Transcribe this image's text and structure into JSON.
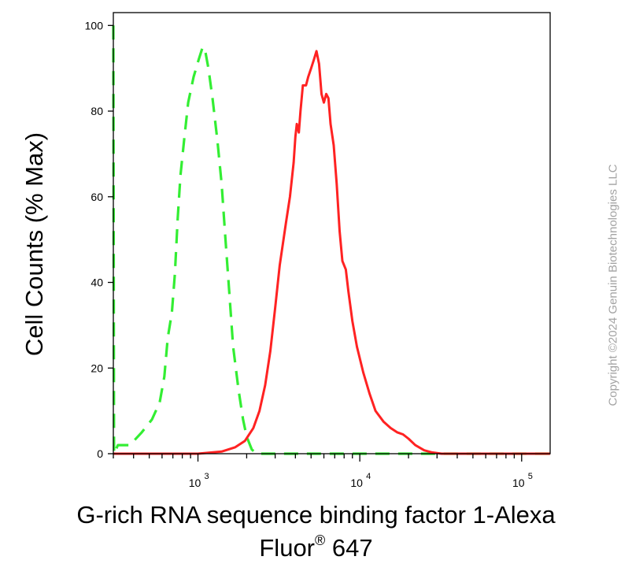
{
  "chart_data": {
    "type": "histogram-overlay",
    "x_scale": "log",
    "xlim": [
      300,
      150000
    ],
    "ylim": [
      0,
      103
    ],
    "ylabel": "Cell Counts (% Max)",
    "xlabel_line1": "G-rich RNA sequence binding factor 1-Alexa",
    "xlabel_line2_prefix": "Fluor",
    "xlabel_line2_mark": "®",
    "xlabel_line2_suffix": " 647",
    "y_ticks": [
      "0",
      "20",
      "40",
      "60",
      "80",
      "100"
    ],
    "y_tick_values": [
      0,
      20,
      40,
      60,
      80,
      100
    ],
    "x_major_ticks": [
      1000,
      10000,
      100000
    ],
    "x_tick_labels": [
      {
        "base": "10",
        "exp": "3"
      },
      {
        "base": "10",
        "exp": "4"
      },
      {
        "base": "10",
        "exp": "5"
      }
    ],
    "grid": false,
    "series": [
      {
        "style": "dashed",
        "color": "#33ee33",
        "points": [
          [
            300,
            100
          ],
          [
            303,
            0
          ],
          [
            320,
            2
          ],
          [
            380,
            2
          ],
          [
            450,
            5
          ],
          [
            520,
            8
          ],
          [
            580,
            12
          ],
          [
            620,
            18
          ],
          [
            650,
            27
          ],
          [
            690,
            33
          ],
          [
            720,
            42
          ],
          [
            750,
            55
          ],
          [
            780,
            65
          ],
          [
            820,
            73
          ],
          [
            870,
            82
          ],
          [
            940,
            88
          ],
          [
            1010,
            92
          ],
          [
            1070,
            95
          ],
          [
            1110,
            94
          ],
          [
            1160,
            90
          ],
          [
            1230,
            83
          ],
          [
            1320,
            73
          ],
          [
            1400,
            63
          ],
          [
            1480,
            50
          ],
          [
            1560,
            38
          ],
          [
            1650,
            25
          ],
          [
            1780,
            15
          ],
          [
            1900,
            8
          ],
          [
            2000,
            4
          ],
          [
            2150,
            1
          ],
          [
            2300,
            0
          ],
          [
            150000,
            0
          ]
        ]
      },
      {
        "style": "solid",
        "color": "#ff2222",
        "points": [
          [
            300,
            0
          ],
          [
            1000,
            0
          ],
          [
            1400,
            0.5
          ],
          [
            1700,
            1.5
          ],
          [
            1950,
            3
          ],
          [
            2200,
            6
          ],
          [
            2400,
            10
          ],
          [
            2600,
            16
          ],
          [
            2800,
            24
          ],
          [
            3000,
            34
          ],
          [
            3200,
            44
          ],
          [
            3500,
            54
          ],
          [
            3700,
            60
          ],
          [
            3900,
            68
          ],
          [
            4000,
            74
          ],
          [
            4080,
            77
          ],
          [
            4200,
            75
          ],
          [
            4300,
            80
          ],
          [
            4450,
            86
          ],
          [
            4650,
            86
          ],
          [
            4800,
            88
          ],
          [
            5000,
            90
          ],
          [
            5200,
            92
          ],
          [
            5400,
            94
          ],
          [
            5600,
            91
          ],
          [
            5800,
            84
          ],
          [
            6000,
            82
          ],
          [
            6200,
            84
          ],
          [
            6400,
            83
          ],
          [
            6600,
            77
          ],
          [
            6900,
            72
          ],
          [
            7200,
            63
          ],
          [
            7500,
            52
          ],
          [
            7800,
            45
          ],
          [
            8200,
            43
          ],
          [
            8500,
            38
          ],
          [
            9000,
            31
          ],
          [
            9600,
            25
          ],
          [
            10500,
            19
          ],
          [
            11500,
            14
          ],
          [
            12500,
            10
          ],
          [
            14000,
            7.5
          ],
          [
            15500,
            6
          ],
          [
            17000,
            5
          ],
          [
            18500,
            4.5
          ],
          [
            20000,
            3.5
          ],
          [
            22000,
            2
          ],
          [
            25000,
            0.8
          ],
          [
            28000,
            0.3
          ],
          [
            32000,
            0
          ],
          [
            150000,
            0
          ]
        ]
      }
    ]
  },
  "watermark": "Copyright ©2024 Genuin Biotechnologies LLC"
}
